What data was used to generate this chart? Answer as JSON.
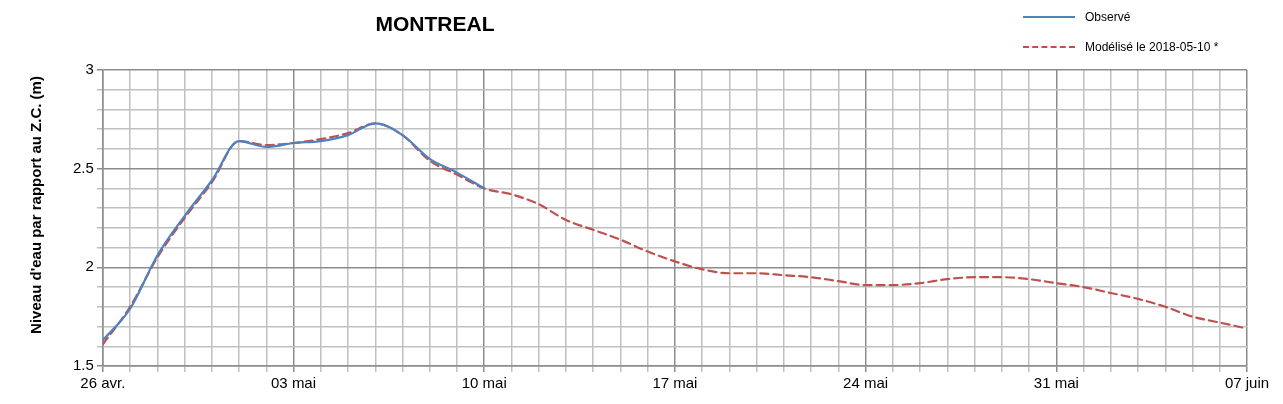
{
  "chart_data": {
    "type": "line",
    "title": "MONTREAL",
    "ylabel": "Niveau d'eau par rapport au Z.C. (m)",
    "x": [
      "2018-04-26",
      "2018-04-27",
      "2018-04-28",
      "2018-04-29",
      "2018-04-30",
      "2018-05-01",
      "2018-05-02",
      "2018-05-03",
      "2018-05-04",
      "2018-05-05",
      "2018-05-06",
      "2018-05-07",
      "2018-05-08",
      "2018-05-09",
      "2018-05-10",
      "2018-05-11",
      "2018-05-12",
      "2018-05-13",
      "2018-05-14",
      "2018-05-15",
      "2018-05-16",
      "2018-05-17",
      "2018-05-18",
      "2018-05-19",
      "2018-05-20",
      "2018-05-21",
      "2018-05-22",
      "2018-05-23",
      "2018-05-24",
      "2018-05-25",
      "2018-05-26",
      "2018-05-27",
      "2018-05-28",
      "2018-05-29",
      "2018-05-30",
      "2018-05-31",
      "2018-06-01",
      "2018-06-02",
      "2018-06-03",
      "2018-06-04",
      "2018-06-05",
      "2018-06-06",
      "2018-06-07"
    ],
    "series": [
      {
        "name": "Observé",
        "color": "#4f81bd",
        "line_style": "solid",
        "values": [
          1.63,
          1.79,
          2.06,
          2.26,
          2.44,
          2.64,
          2.61,
          2.63,
          2.64,
          2.67,
          2.73,
          2.67,
          2.55,
          2.48,
          2.4,
          null,
          null,
          null,
          null,
          null,
          null,
          null,
          null,
          null,
          null,
          null,
          null,
          null,
          null,
          null,
          null,
          null,
          null,
          null,
          null,
          null,
          null,
          null,
          null,
          null,
          null,
          null,
          null
        ]
      },
      {
        "name": "Modélisé le 2018-05-10 *",
        "color": "#c0504d",
        "line_style": "dashed",
        "values": [
          1.61,
          1.8,
          2.05,
          2.25,
          2.43,
          2.64,
          2.62,
          2.63,
          2.65,
          2.68,
          2.73,
          2.67,
          2.54,
          2.47,
          2.4,
          2.37,
          2.32,
          2.24,
          2.19,
          2.14,
          2.08,
          2.03,
          1.99,
          1.97,
          1.97,
          1.96,
          1.95,
          1.93,
          1.91,
          1.91,
          1.92,
          1.94,
          1.95,
          1.95,
          1.94,
          1.92,
          1.9,
          1.87,
          1.84,
          1.8,
          1.75,
          1.72,
          1.69
        ]
      }
    ],
    "xlim": [
      "2018-04-26",
      "2018-06-07"
    ],
    "xticks": [
      {
        "value": "2018-04-26",
        "label": "26 avr."
      },
      {
        "value": "2018-04-27",
        "label": null
      },
      {
        "value": "2018-04-28",
        "label": null
      },
      {
        "value": "2018-04-29",
        "label": null
      },
      {
        "value": "2018-04-30",
        "label": null
      },
      {
        "value": "2018-05-01",
        "label": null
      },
      {
        "value": "2018-05-02",
        "label": null
      },
      {
        "value": "2018-05-03",
        "label": "03 mai"
      },
      {
        "value": "2018-05-04",
        "label": null
      },
      {
        "value": "2018-05-05",
        "label": null
      },
      {
        "value": "2018-05-06",
        "label": null
      },
      {
        "value": "2018-05-07",
        "label": null
      },
      {
        "value": "2018-05-08",
        "label": null
      },
      {
        "value": "2018-05-09",
        "label": null
      },
      {
        "value": "2018-05-10",
        "label": "10 mai"
      },
      {
        "value": "2018-05-11",
        "label": null
      },
      {
        "value": "2018-05-12",
        "label": null
      },
      {
        "value": "2018-05-13",
        "label": null
      },
      {
        "value": "2018-05-14",
        "label": null
      },
      {
        "value": "2018-05-15",
        "label": null
      },
      {
        "value": "2018-05-16",
        "label": null
      },
      {
        "value": "2018-05-17",
        "label": "17 mai"
      },
      {
        "value": "2018-05-18",
        "label": null
      },
      {
        "value": "2018-05-19",
        "label": null
      },
      {
        "value": "2018-05-20",
        "label": null
      },
      {
        "value": "2018-05-21",
        "label": null
      },
      {
        "value": "2018-05-22",
        "label": null
      },
      {
        "value": "2018-05-23",
        "label": null
      },
      {
        "value": "2018-05-24",
        "label": "24 mai"
      },
      {
        "value": "2018-05-25",
        "label": null
      },
      {
        "value": "2018-05-26",
        "label": null
      },
      {
        "value": "2018-05-27",
        "label": null
      },
      {
        "value": "2018-05-28",
        "label": null
      },
      {
        "value": "2018-05-29",
        "label": null
      },
      {
        "value": "2018-05-30",
        "label": null
      },
      {
        "value": "2018-05-31",
        "label": "31 mai"
      },
      {
        "value": "2018-06-01",
        "label": null
      },
      {
        "value": "2018-06-02",
        "label": null
      },
      {
        "value": "2018-06-03",
        "label": null
      },
      {
        "value": "2018-06-04",
        "label": null
      },
      {
        "value": "2018-06-05",
        "label": null
      },
      {
        "value": "2018-06-06",
        "label": null
      },
      {
        "value": "2018-06-07",
        "label": "07 juin"
      }
    ],
    "ylim": [
      1.5,
      3
    ],
    "yticks": [
      1.5,
      {
        "value": 1.6,
        "label": null
      },
      {
        "value": 1.7,
        "label": null
      },
      {
        "value": 1.8,
        "label": null
      },
      {
        "value": 1.9,
        "label": null
      },
      2,
      {
        "value": 2.1,
        "label": null
      },
      {
        "value": 2.2,
        "label": null
      },
      {
        "value": 2.3,
        "label": null
      },
      {
        "value": 2.4,
        "label": null
      },
      2.5,
      {
        "value": 2.6,
        "label": null
      },
      {
        "value": 2.7,
        "label": null
      },
      {
        "value": 2.8,
        "label": null
      },
      {
        "value": 2.9,
        "label": null
      },
      3
    ],
    "grid": true,
    "legend": "top right",
    "marker": "none"
  }
}
